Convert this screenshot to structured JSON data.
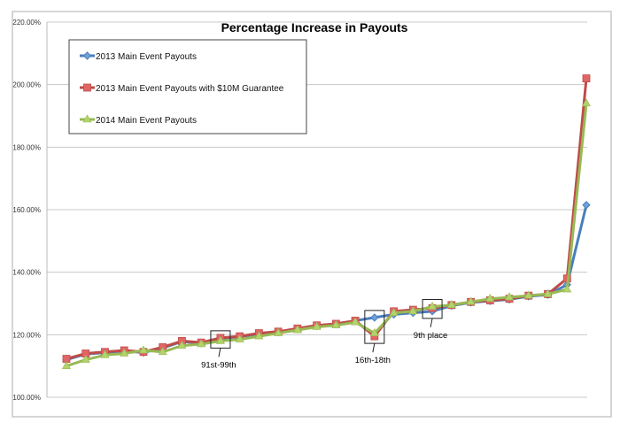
{
  "chart_data": {
    "type": "line",
    "title": "Percentage Increase in Payouts",
    "xlabel": "",
    "ylabel": "",
    "ylim": [
      100,
      220
    ],
    "yticks": [
      "100.00%",
      "120.00%",
      "140.00%",
      "160.00%",
      "180.00%",
      "200.00%",
      "220.00%"
    ],
    "ytick_values": [
      100,
      120,
      140,
      160,
      180,
      200,
      220
    ],
    "grid": true,
    "legend_position": "top-left",
    "x": [
      1,
      2,
      3,
      4,
      5,
      6,
      7,
      8,
      9,
      10,
      11,
      12,
      13,
      14,
      15,
      16,
      17,
      18,
      19,
      20,
      21,
      22,
      23,
      24,
      25,
      26,
      27,
      28
    ],
    "series": [
      {
        "name": "2013 Main Event Payouts",
        "color": "#4a7ebb",
        "marker": "diamond",
        "values": [
          112,
          113.8,
          114.3,
          114.8,
          114.3,
          115.8,
          117.8,
          117.3,
          118.8,
          119.3,
          120.3,
          120.8,
          121.8,
          122.8,
          123.3,
          124.5,
          125.5,
          126.5,
          127,
          127.5,
          129.3,
          130.3,
          130.8,
          131.3,
          132.3,
          132.8,
          136,
          161.5
        ]
      },
      {
        "name": "2013 Main Event Payouts with $10M Guarantee",
        "color": "#be4b48",
        "marker": "square",
        "values": [
          112.3,
          114,
          114.5,
          115,
          114.5,
          116,
          118,
          117.5,
          119,
          119.5,
          120.5,
          121,
          122,
          123,
          123.5,
          124.5,
          119.5,
          127.5,
          128,
          128.5,
          129.5,
          130.5,
          131,
          131.5,
          132.5,
          133,
          138,
          202
        ]
      },
      {
        "name": "2014 Main Event Payouts",
        "color": "#98b954",
        "marker": "triangle",
        "values": [
          110,
          112,
          113.5,
          114,
          115,
          114.5,
          116.5,
          117,
          118,
          118.5,
          119.5,
          120.5,
          121.5,
          122.5,
          123,
          124,
          120.5,
          127,
          127.5,
          129,
          129.5,
          130.5,
          131.5,
          132,
          132.5,
          133,
          134.5,
          194
        ]
      }
    ],
    "annotations": [
      {
        "text": "91st-99th",
        "x": 9
      },
      {
        "text": "16th-18th",
        "x": 17
      },
      {
        "text": "9th place",
        "x": 20
      }
    ]
  }
}
